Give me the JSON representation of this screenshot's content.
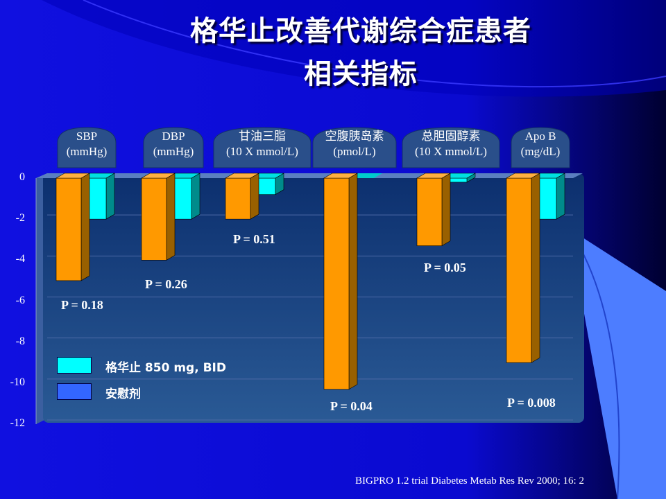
{
  "title_line1": "格华止改善代谢综合症患者",
  "title_line2": "相关指标",
  "citation": "BIGPRO 1.2 trial Diabetes Metab Res Rev 2000; 16: 2",
  "colors": {
    "treatment": "#ff9900",
    "placebo": "#00ffff",
    "legend_treatment_swatch": "#00ffff",
    "legend_placebo_swatch": "#3366ff",
    "background": "#0a0ad8",
    "plot_area": "#1a3d7a"
  },
  "legend": [
    {
      "label": "格华止 850 mg, BID",
      "color": "#00ffff"
    },
    {
      "label": "安慰剂",
      "color": "#3366ff"
    }
  ],
  "chart_data": {
    "type": "bar",
    "categories": [
      {
        "line1": "SBP",
        "line2": "(mmHg)"
      },
      {
        "line1": "DBP",
        "line2": "(mmHg)"
      },
      {
        "line1": "甘油三脂",
        "line2": "(10 X mmol/L)"
      },
      {
        "line1": "空腹胰岛素",
        "line2": "(pmol/L)"
      },
      {
        "line1": "总胆固醇素",
        "line2": "(10 X mmol/L)"
      },
      {
        "line1": "Apo B",
        "line2": "(mg/dL)"
      }
    ],
    "series": [
      {
        "values": [
          -5,
          -4,
          -2,
          -10.3,
          -3.3,
          -9
        ]
      },
      {
        "values": [
          -2,
          -2,
          -0.8,
          0,
          -0.2,
          -2
        ]
      }
    ],
    "p_values": [
      "P = 0.18",
      "P = 0.26",
      "P = 0.51",
      "P = 0.04",
      "P = 0.05",
      "P = 0.008"
    ],
    "ylim": [
      -12,
      0
    ],
    "yticks": [
      "0",
      "-2",
      "-4",
      "-6",
      "-8",
      "-10",
      "-12"
    ],
    "grid": true
  }
}
